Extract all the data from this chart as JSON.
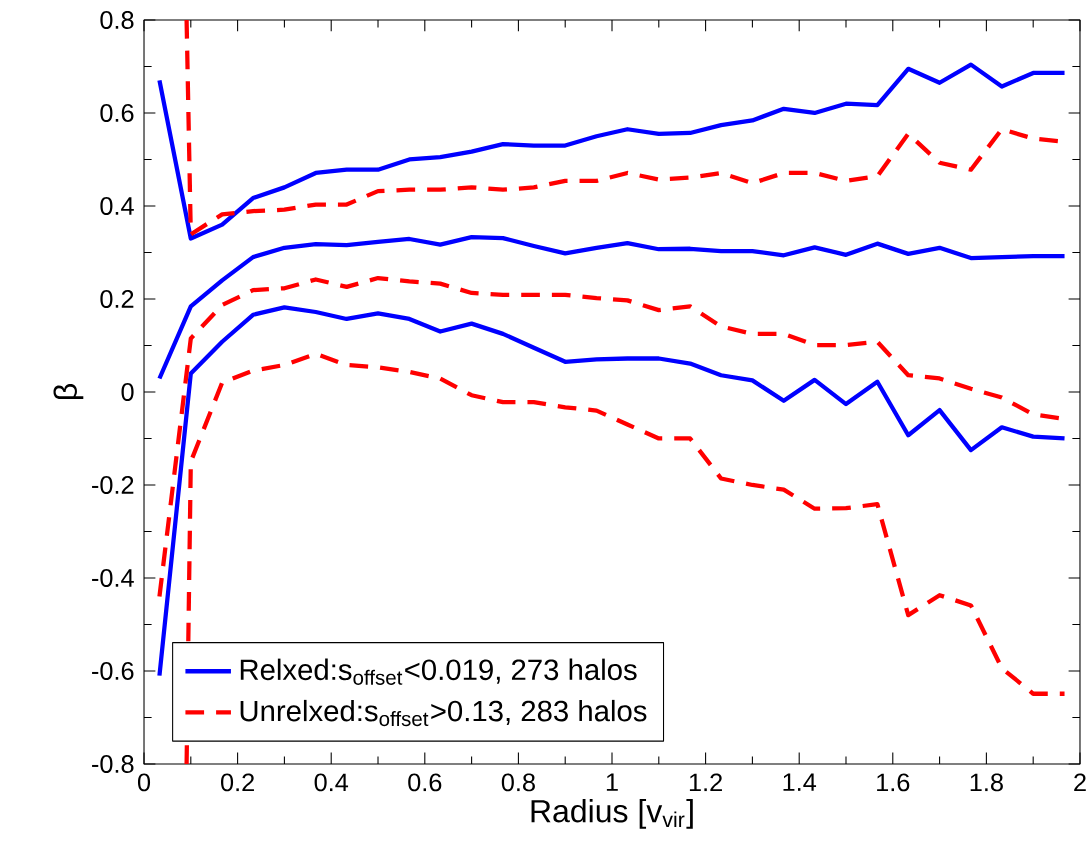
{
  "chart_data": {
    "type": "line",
    "xlabel": "Radius [v$_{vir}$]",
    "ylabel": "β",
    "xlim": [
      0,
      2
    ],
    "ylim": [
      -0.8,
      0.8
    ],
    "xticks": [
      0,
      0.2,
      0.4,
      0.6,
      0.8,
      1,
      1.2,
      1.4,
      1.6,
      1.8,
      2
    ],
    "yticks": [
      -0.8,
      -0.6,
      -0.4,
      -0.2,
      0,
      0.2,
      0.4,
      0.6,
      0.8
    ],
    "x": [
      0.033,
      0.1,
      0.167,
      0.233,
      0.3,
      0.367,
      0.433,
      0.5,
      0.567,
      0.633,
      0.7,
      0.767,
      0.833,
      0.9,
      0.967,
      1.033,
      1.1,
      1.167,
      1.233,
      1.3,
      1.367,
      1.433,
      1.5,
      1.567,
      1.633,
      1.7,
      1.767,
      1.833,
      1.9,
      1.967
    ],
    "legend": "bottom left",
    "marker": "none",
    "series": [
      {
        "name": "Relxed:s$_{offset}$<0.019, 273 halos",
        "color": "#0000ff",
        "line_style": "solid",
        "values": [
          0.67,
          0.33,
          0.36,
          0.417,
          0.44,
          0.471,
          0.478,
          0.478,
          0.5,
          0.505,
          0.517,
          0.533,
          0.53,
          0.53,
          0.55,
          0.565,
          0.555,
          0.557,
          0.574,
          0.584,
          0.609,
          0.6,
          0.62,
          0.617,
          0.695,
          0.665,
          0.704,
          0.657,
          0.686,
          0.686
        ]
      },
      {
        "color": "#0000ff",
        "line_style": "solid",
        "values": [
          0.029,
          0.184,
          0.24,
          0.29,
          0.31,
          0.318,
          0.316,
          0.323,
          0.329,
          0.317,
          0.333,
          0.331,
          0.314,
          0.298,
          0.31,
          0.32,
          0.307,
          0.308,
          0.303,
          0.303,
          0.294,
          0.311,
          0.295,
          0.319,
          0.297,
          0.31,
          0.288,
          0.29,
          0.292,
          0.292
        ]
      },
      {
        "color": "#0000ff",
        "line_style": "solid",
        "values": [
          -0.61,
          0.04,
          0.108,
          0.166,
          0.182,
          0.172,
          0.157,
          0.169,
          0.157,
          0.13,
          0.147,
          0.125,
          0.095,
          0.065,
          0.07,
          0.072,
          0.072,
          0.061,
          0.036,
          0.025,
          -0.019,
          0.026,
          -0.026,
          0.022,
          -0.093,
          -0.039,
          -0.125,
          -0.076,
          -0.096,
          -0.1
        ]
      },
      {
        "name": "Unrelxed:s$_{offset}$>0.13, 283 halos",
        "color": "#ff0000",
        "line_style": "dashed",
        "x": [
          0.091,
          0.1,
          0.167,
          0.233,
          0.3,
          0.367,
          0.433,
          0.5,
          0.567,
          0.633,
          0.7,
          0.767,
          0.833,
          0.9,
          0.967,
          1.033,
          1.1,
          1.167,
          1.233,
          1.3,
          1.367,
          1.433,
          1.5,
          1.567,
          1.633,
          1.7,
          1.767,
          1.833,
          1.9,
          1.967
        ],
        "values": [
          0.8,
          0.339,
          0.382,
          0.389,
          0.392,
          0.403,
          0.403,
          0.432,
          0.435,
          0.435,
          0.44,
          0.435,
          0.44,
          0.454,
          0.454,
          0.471,
          0.457,
          0.461,
          0.471,
          0.449,
          0.471,
          0.471,
          0.454,
          0.464,
          0.555,
          0.493,
          0.478,
          0.565,
          0.545,
          0.538
        ]
      },
      {
        "color": "#ff0000",
        "line_style": "dashed",
        "values": [
          -0.44,
          0.115,
          0.187,
          0.219,
          0.223,
          0.242,
          0.226,
          0.245,
          0.238,
          0.233,
          0.213,
          0.209,
          0.209,
          0.209,
          0.202,
          0.197,
          0.176,
          0.184,
          0.141,
          0.125,
          0.125,
          0.101,
          0.101,
          0.108,
          0.036,
          0.029,
          0.007,
          -0.012,
          -0.048,
          -0.058
        ]
      },
      {
        "color": "#ff0000",
        "line_style": "dashed",
        "x": [
          0.091,
          0.1,
          0.167,
          0.233,
          0.3,
          0.367,
          0.433,
          0.5,
          0.567,
          0.633,
          0.7,
          0.767,
          0.833,
          0.9,
          0.967,
          1.033,
          1.1,
          1.167,
          1.233,
          1.3,
          1.367,
          1.433,
          1.5,
          1.567,
          1.633,
          1.7,
          1.767,
          1.833,
          1.9,
          1.967
        ],
        "values": [
          -0.8,
          -0.15,
          0.02,
          0.046,
          0.058,
          0.082,
          0.058,
          0.053,
          0.043,
          0.029,
          -0.007,
          -0.022,
          -0.022,
          -0.033,
          -0.04,
          -0.07,
          -0.1,
          -0.1,
          -0.186,
          -0.2,
          -0.21,
          -0.251,
          -0.25,
          -0.241,
          -0.48,
          -0.437,
          -0.459,
          -0.594,
          -0.649,
          -0.649
        ]
      }
    ]
  }
}
